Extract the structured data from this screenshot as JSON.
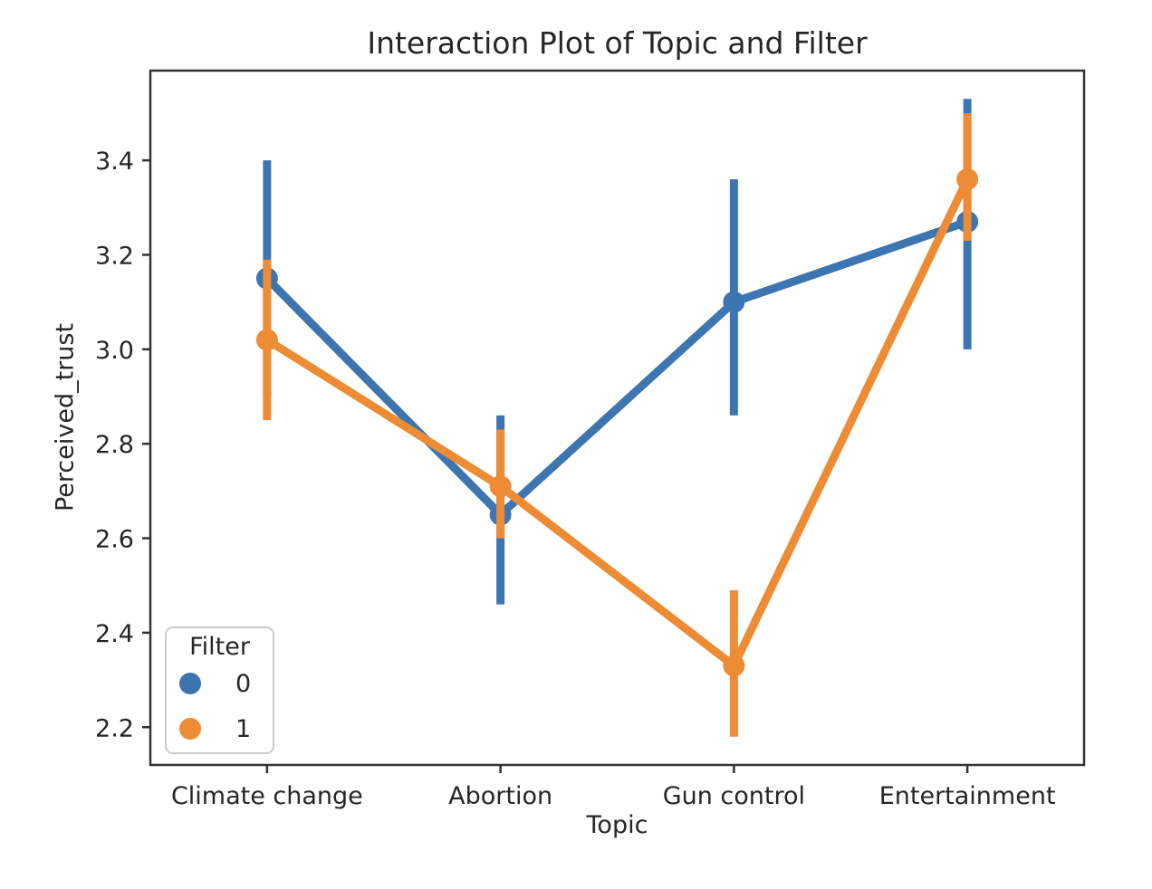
{
  "figure": {
    "background": "#ffffff"
  },
  "chart_data": {
    "type": "line",
    "subtype": "pointplot-with-error-bars",
    "title": "Interaction Plot of Topic and Filter",
    "xlabel": "Topic",
    "ylabel": "Perceived_trust",
    "categories": [
      "Climate change",
      "Abortion",
      "Gun control",
      "Entertainment"
    ],
    "series": [
      {
        "name": "0",
        "color": "#3C75B0",
        "means": [
          3.15,
          2.65,
          3.1,
          3.27
        ],
        "ci_low": [
          2.9,
          2.46,
          2.86,
          3.0
        ],
        "ci_high": [
          3.4,
          2.86,
          3.36,
          3.53
        ]
      },
      {
        "name": "1",
        "color": "#EE8B35",
        "means": [
          3.02,
          2.71,
          2.33,
          3.36
        ],
        "ci_low": [
          2.85,
          2.6,
          2.18,
          3.23
        ],
        "ci_high": [
          3.19,
          2.83,
          2.49,
          3.5
        ]
      }
    ],
    "ylim": [
      2.12,
      3.59
    ],
    "yticks": [
      2.2,
      2.4,
      2.6,
      2.8,
      3.0,
      3.2,
      3.4
    ],
    "grid": false,
    "legend_title": "Filter",
    "legend_position": "lower left",
    "axis_color": "#333333",
    "text_color": "#262626"
  }
}
